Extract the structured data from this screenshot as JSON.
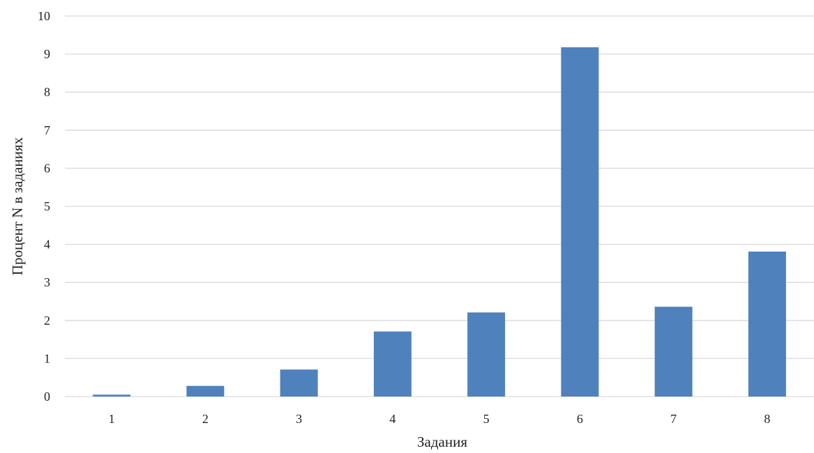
{
  "chart_data": {
    "type": "bar",
    "categories": [
      "1",
      "2",
      "3",
      "4",
      "5",
      "6",
      "7",
      "8"
    ],
    "values": [
      0.05,
      0.28,
      0.71,
      1.71,
      2.21,
      9.18,
      2.36,
      3.81
    ],
    "xlabel": "Задания",
    "ylabel": "Процент N в заданиях",
    "ylim": [
      0,
      10
    ],
    "yticks": [
      "0",
      "1",
      "2",
      "3",
      "4",
      "5",
      "6",
      "7",
      "8",
      "9",
      "10"
    ],
    "grid": true,
    "legend": "none",
    "bar_color": "#4f81bd"
  }
}
